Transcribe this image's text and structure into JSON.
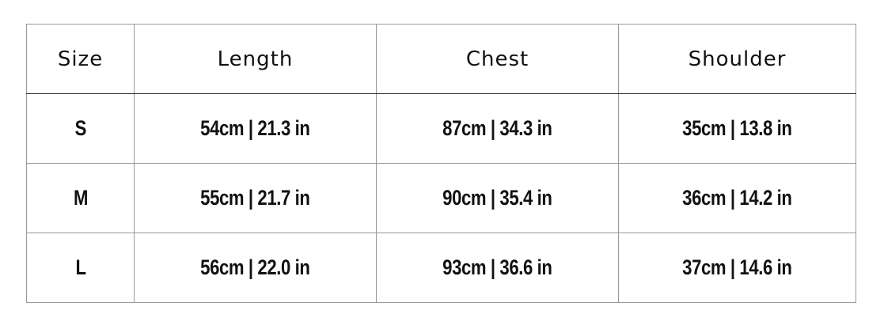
{
  "table": {
    "header": [
      "Size",
      "Length",
      "Chest",
      "Shoulder"
    ],
    "rows": [
      [
        "S",
        "54cm | 21.3 in",
        "87cm | 34.3 in",
        "35cm | 13.8 in"
      ],
      [
        "M",
        "55cm | 21.7 in",
        "90cm | 35.4 in",
        "36cm | 14.2 in"
      ],
      [
        "L",
        "56cm | 22.0 in",
        "93cm | 36.6 in",
        "37cm | 14.6 in"
      ]
    ]
  }
}
